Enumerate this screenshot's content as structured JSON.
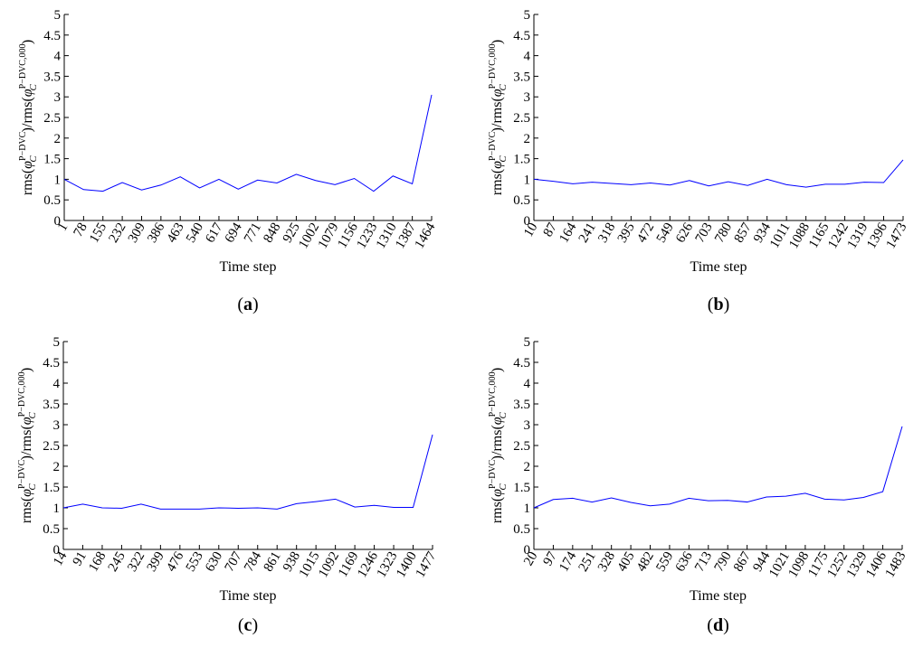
{
  "chart_data": [
    {
      "type": "line",
      "panel_label": "a",
      "xlabel": "Time step",
      "ylabel": "rms(φ_C^{P−DVC})/rms(φ_C^{P−DVC,000})",
      "ylabel_parts": {
        "pre": "rms(",
        "phi": "φ",
        "sub": "C",
        "sup1": "P−DVC",
        "mid": ")/rms(",
        "sup2": "P−DVC,000",
        "post": ")"
      },
      "ylim": [
        0,
        5
      ],
      "yticks": [
        0,
        0.5,
        1,
        1.5,
        2,
        2.5,
        3,
        3.5,
        4,
        4.5,
        5
      ],
      "categories": [
        "1",
        "78",
        "155",
        "232",
        "309",
        "386",
        "463",
        "540",
        "617",
        "694",
        "771",
        "848",
        "925",
        "1002",
        "1079",
        "1156",
        "1233",
        "1310",
        "1387",
        "1464"
      ],
      "series": [
        {
          "values": [
            1.0,
            0.75,
            0.71,
            0.92,
            0.74,
            0.86,
            1.06,
            0.79,
            1.0,
            0.76,
            0.98,
            0.91,
            1.12,
            0.97,
            0.87,
            1.02,
            0.71,
            1.08,
            0.89,
            3.05
          ],
          "color": "#0000ff"
        }
      ],
      "grid": false
    },
    {
      "type": "line",
      "panel_label": "b",
      "xlabel": "Time step",
      "ylabel": "rms(φ_C^{P−DVC})/rms(φ_C^{P−DVC,000})",
      "ylabel_parts": {
        "pre": "rms(",
        "phi": "φ",
        "sub": "C",
        "sup1": "P−DVC",
        "mid": ")/rms(",
        "sup2": "P−DVC,000",
        "post": ")"
      },
      "ylim": [
        0,
        5
      ],
      "yticks": [
        0,
        0.5,
        1,
        1.5,
        2,
        2.5,
        3,
        3.5,
        4,
        4.5,
        5
      ],
      "categories": [
        "10",
        "87",
        "164",
        "241",
        "318",
        "395",
        "472",
        "549",
        "626",
        "703",
        "780",
        "857",
        "934",
        "1011",
        "1088",
        "1165",
        "1242",
        "1319",
        "1396",
        "1473"
      ],
      "series": [
        {
          "values": [
            1.0,
            0.95,
            0.89,
            0.93,
            0.9,
            0.87,
            0.91,
            0.86,
            0.97,
            0.84,
            0.94,
            0.85,
            1.0,
            0.87,
            0.81,
            0.88,
            0.88,
            0.93,
            0.92,
            1.47
          ],
          "color": "#0000ff"
        }
      ],
      "grid": false
    },
    {
      "type": "line",
      "panel_label": "c",
      "xlabel": "Time step",
      "ylabel": "rms(φ_C^{P−DVC})/rms(φ_C^{P−DVC,000})",
      "ylabel_parts": {
        "pre": "rms(",
        "phi": "φ",
        "sub": "C",
        "sup1": "P−DVC",
        "mid": ")/rms(",
        "sup2": "P−DVC,000",
        "post": ")"
      },
      "ylim": [
        0,
        5
      ],
      "yticks": [
        0,
        0.5,
        1,
        1.5,
        2,
        2.5,
        3,
        3.5,
        4,
        4.5,
        5
      ],
      "categories": [
        "14",
        "91",
        "168",
        "245",
        "322",
        "399",
        "476",
        "553",
        "630",
        "707",
        "784",
        "861",
        "938",
        "1015",
        "1092",
        "1169",
        "1246",
        "1323",
        "1400",
        "1477"
      ],
      "series": [
        {
          "values": [
            1.0,
            1.09,
            1.0,
            0.99,
            1.09,
            0.97,
            0.97,
            0.97,
            1.0,
            0.99,
            1.0,
            0.97,
            1.1,
            1.15,
            1.21,
            1.02,
            1.06,
            1.01,
            1.01,
            2.76
          ],
          "color": "#0000ff"
        }
      ],
      "grid": false
    },
    {
      "type": "line",
      "panel_label": "d",
      "xlabel": "Time step",
      "ylabel": "rms(φ_C^{P−DVC})/rms(φ_C^{P−DVC,000})",
      "ylabel_parts": {
        "pre": "rms(",
        "phi": "φ",
        "sub": "C",
        "sup1": "P−DVC",
        "mid": ")/rms(",
        "sup2": "P−DVC,000",
        "post": ")"
      },
      "ylim": [
        0,
        5
      ],
      "yticks": [
        0,
        0.5,
        1,
        1.5,
        2,
        2.5,
        3,
        3.5,
        4,
        4.5,
        5
      ],
      "categories": [
        "20",
        "97",
        "174",
        "251",
        "328",
        "405",
        "482",
        "559",
        "636",
        "713",
        "790",
        "867",
        "944",
        "1021",
        "1098",
        "1175",
        "1252",
        "1329",
        "1406",
        "1483"
      ],
      "series": [
        {
          "values": [
            1.0,
            1.2,
            1.23,
            1.14,
            1.24,
            1.13,
            1.05,
            1.09,
            1.23,
            1.17,
            1.18,
            1.14,
            1.26,
            1.28,
            1.35,
            1.21,
            1.19,
            1.25,
            1.39,
            2.96
          ],
          "color": "#0000ff"
        }
      ],
      "grid": false
    }
  ]
}
